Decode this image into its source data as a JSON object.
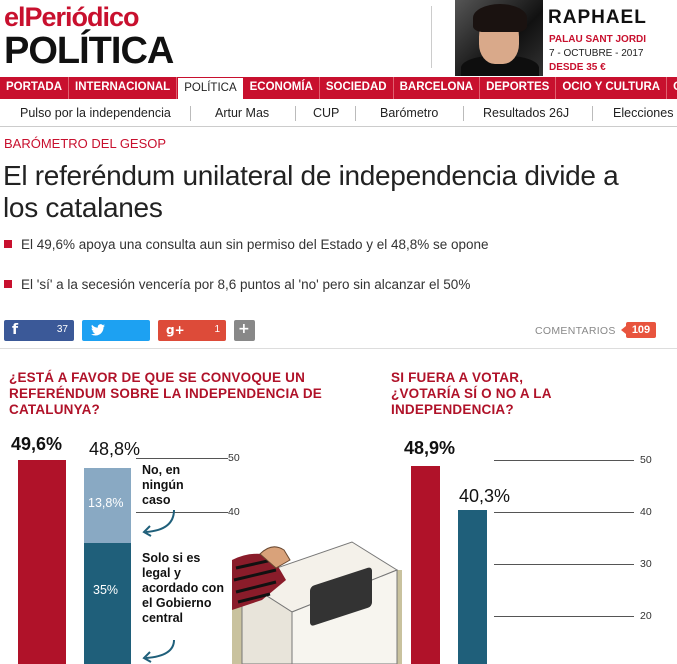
{
  "header": {
    "logo": "elPeriódico",
    "section": "POLÍTICA",
    "ad": {
      "title": "RAPHAEL",
      "venue": "PALAU SANT JORDI",
      "date": "7 - OCTUBRE - 2017",
      "price": "DESDE 35 €"
    }
  },
  "nav": {
    "items": [
      "PORTADA",
      "INTERNACIONAL",
      "POLÍTICA",
      "ECONOMÍA",
      "SOCIEDAD",
      "BARCELONA",
      "DEPORTES",
      "OCIO Y CULTURA",
      "GEN"
    ],
    "active_index": 2
  },
  "subnav": {
    "items": [
      "Pulso por la independencia",
      "Artur Mas",
      "CUP",
      "Barómetro",
      "Resultados 26J",
      "Elecciones"
    ]
  },
  "article": {
    "kicker": "BARÓMETRO DEL GESOP",
    "headline": "El referéndum unilateral de independencia divide a los catalanes",
    "bullets": [
      "El 49,6% apoya una consulta aun sin permiso del Estado y el 48,8% se opone",
      "El 'sí' a la secesión vencería por 8,6 puntos al 'no' pero sin alcanzar el 50%"
    ]
  },
  "share": {
    "facebook_icon": "f",
    "facebook_count": "37",
    "twitter_icon": "twitter-bird",
    "gplus_icon": "g+",
    "gplus_count": "1",
    "more_icon": "+",
    "comments_label": "COMENTARIOS",
    "comments_count": "109"
  },
  "chart_data": [
    {
      "type": "bar",
      "title": "¿ESTÁ A FAVOR DE QUE SE CONVOQUE UN REFERÉNDUM SOBRE LA INDEPENDENCIA DE CATALUNYA?",
      "value_labels": [
        "49,6%",
        "48,8%"
      ],
      "values": [
        49.6,
        48.8
      ],
      "stack": [
        {
          "label": "13,8%",
          "value": 13.8,
          "note": "No, en ningún caso"
        },
        {
          "label": "35%",
          "value": 35,
          "note": "Solo si es legal y acordado con el Gobierno central"
        }
      ],
      "colors": [
        "#b01229",
        "#1f5f7a",
        "#89a9c3"
      ],
      "ticks": [
        "50",
        "40"
      ]
    },
    {
      "type": "bar",
      "title": "SI FUERA A VOTAR, ¿VOTARÍA SÍ O NO A LA INDEPENDENCIA?",
      "value_labels": [
        "48,9%",
        "40,3%"
      ],
      "values": [
        48.9,
        40.3
      ],
      "colors": [
        "#b01229",
        "#1f5f7a"
      ],
      "ticks": [
        "50",
        "40",
        "30",
        "20"
      ]
    }
  ]
}
